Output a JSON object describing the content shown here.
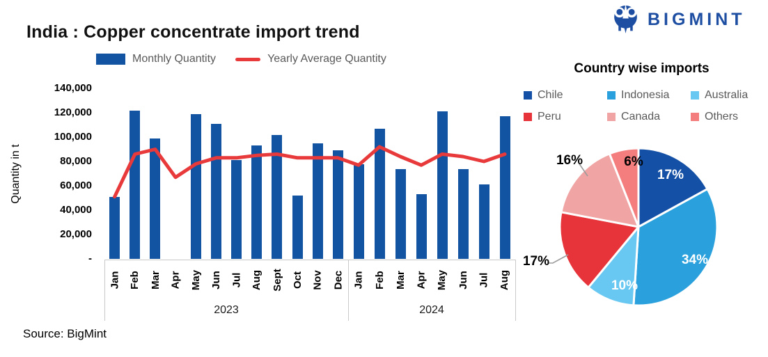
{
  "title": "India : Copper concentrate import trend",
  "logo_text": "BIGMINT",
  "source": "Source: BigMint",
  "colors": {
    "bar_blue": "#1253A2",
    "line_red": "#E8393B",
    "logo_blue": "#1D4EA2",
    "legend_text_gray": "#595959",
    "axis_gray": "#C9C9C9"
  },
  "chart_data": [
    {
      "type": "bar",
      "title": "India : Copper concentrate import trend",
      "ylabel": "Quantity in t",
      "ylim": [
        0,
        140000
      ],
      "yticks": [
        "140,000",
        "120,000",
        "100,000",
        "80,000",
        "60,000",
        "40,000",
        "20,000",
        "-"
      ],
      "legend_position": "top",
      "grid": false,
      "groups": [
        {
          "year": "2023",
          "months": [
            "Jan",
            "Feb",
            "Mar",
            "Apr",
            "May",
            "Jun",
            "Jul",
            "Aug",
            "Sept",
            "Oct",
            "Nov",
            "Dec"
          ]
        },
        {
          "year": "2024",
          "months": [
            "Jan",
            "Feb",
            "Mar",
            "Apr",
            "May",
            "Jun",
            "Jul",
            "Aug"
          ]
        }
      ],
      "series": [
        {
          "name": "Monthly Quantity",
          "type": "bar",
          "color": "#1253A2",
          "values": [
            51000,
            122000,
            99000,
            0,
            119000,
            111000,
            81000,
            93000,
            102000,
            52000,
            95000,
            89000,
            78000,
            107000,
            74000,
            53000,
            121000,
            74000,
            61000,
            117000
          ]
        },
        {
          "name": "Yearly Average Quantity",
          "type": "line",
          "color": "#E8393B",
          "values": [
            51000,
            86000,
            90000,
            67000,
            78000,
            83000,
            83000,
            85000,
            86000,
            83000,
            83000,
            83000,
            77000,
            92000,
            84000,
            77000,
            86000,
            84000,
            80000,
            86000
          ]
        }
      ]
    },
    {
      "type": "pie",
      "title": "Country wise imports",
      "slices": [
        {
          "label": "Chile",
          "pct": 17,
          "color": "#1450A5",
          "label_text": "17%",
          "label_inside": true
        },
        {
          "label": "Indonesia",
          "pct": 34,
          "color": "#2AA1DC",
          "label_text": "34%",
          "label_inside": true
        },
        {
          "label": "Australia",
          "pct": 10,
          "color": "#69C8F1",
          "label_text": "10%",
          "label_inside": true
        },
        {
          "label": "Peru",
          "pct": 17,
          "color": "#E7343A",
          "label_text": "17%",
          "label_inside": false
        },
        {
          "label": "Canada",
          "pct": 16,
          "color": "#F0A4A4",
          "label_text": "16%",
          "label_inside": false
        },
        {
          "label": "Others",
          "pct": 6,
          "color": "#F47D7D",
          "label_text": "6%",
          "label_inside": true
        }
      ]
    }
  ]
}
